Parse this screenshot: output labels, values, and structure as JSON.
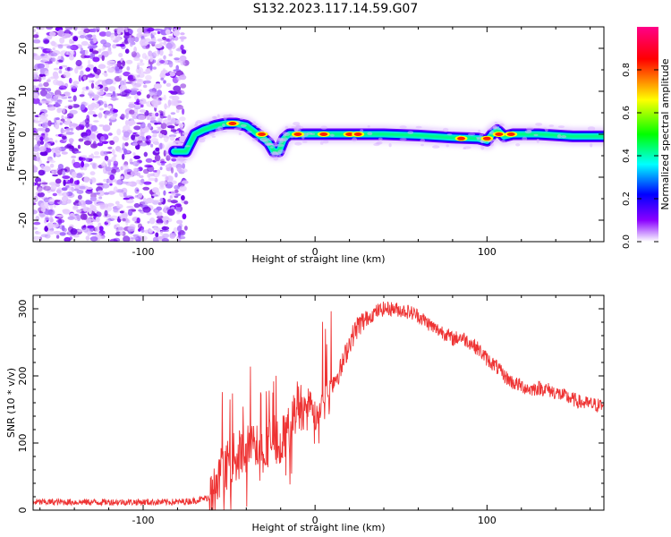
{
  "title": "S132.2023.117.14.59.G07",
  "chart_data": [
    {
      "type": "heatmap",
      "xlabel": "Height of straight line (km)",
      "ylabel": "Frequency (Hz)",
      "xlim": [
        -164,
        168
      ],
      "ylim": [
        -25,
        25
      ],
      "xticks": [
        -100,
        0,
        100
      ],
      "yticks": [
        -20,
        -10,
        0,
        10,
        20
      ],
      "colorbar": {
        "label": "Normalized spectral amplitude",
        "range": [
          0,
          1
        ],
        "ticks": [
          0.0,
          0.2,
          0.4,
          0.6,
          0.8
        ],
        "colors": [
          "#ffffff",
          "#8a00ff",
          "#0000ff",
          "#00ffff",
          "#00ff00",
          "#ffff00",
          "#ff0000",
          "#ff00aa"
        ]
      },
      "noise_region": {
        "x": [
          -164,
          -75
        ],
        "y": [
          -25,
          25
        ]
      },
      "ridge": {
        "x": [
          -82,
          -75,
          -70,
          -65,
          -58,
          -52,
          -46,
          -40,
          -35,
          -30,
          -27,
          -24,
          -21,
          -18,
          -15,
          -10,
          -5,
          0,
          20,
          40,
          60,
          80,
          95,
          100,
          103,
          106,
          110,
          115,
          130,
          150,
          168
        ],
        "y": [
          -4,
          -4,
          0,
          1,
          2,
          2.5,
          2.5,
          2,
          0.5,
          -1,
          -2,
          -4,
          -4,
          -1,
          0,
          0,
          0,
          0,
          0,
          0,
          -0.3,
          -0.8,
          -1,
          -1.5,
          0,
          1,
          -0.5,
          0,
          0,
          -0.5,
          -0.5
        ]
      },
      "hot_spots": [
        {
          "x": -48,
          "y": 2.5
        },
        {
          "x": -31,
          "y": 0
        },
        {
          "x": -10,
          "y": 0
        },
        {
          "x": 5,
          "y": 0
        },
        {
          "x": 20,
          "y": 0
        },
        {
          "x": 25,
          "y": 0
        },
        {
          "x": 85,
          "y": -1
        },
        {
          "x": 100,
          "y": -1
        },
        {
          "x": 107,
          "y": 0
        },
        {
          "x": 114,
          "y": 0
        }
      ]
    },
    {
      "type": "line",
      "xlabel": "Height of straight line (km)",
      "ylabel": "SNR (10 * v/v)",
      "xlim": [
        -164,
        168
      ],
      "ylim": [
        0,
        320
      ],
      "xticks": [
        -100,
        0,
        100
      ],
      "yticks": [
        0,
        100,
        200,
        300
      ],
      "color": "#ee3333",
      "series": [
        {
          "x": [
            -164,
            -140,
            -120,
            -100,
            -80,
            -70,
            -60,
            -55,
            -50,
            -45,
            -40,
            -35,
            -30,
            -25,
            -20,
            -15,
            -10,
            -5,
            0,
            5,
            10,
            15,
            20,
            25,
            30,
            35,
            40,
            45,
            50,
            55,
            60,
            65,
            70,
            75,
            80,
            85,
            90,
            95,
            100,
            105,
            110,
            115,
            120,
            125,
            130,
            135,
            140,
            145,
            150,
            155,
            160,
            168
          ],
          "y": [
            12,
            12,
            12,
            12,
            12,
            14,
            20,
            45,
            75,
            80,
            90,
            95,
            90,
            110,
            100,
            120,
            160,
            150,
            130,
            170,
            190,
            210,
            250,
            275,
            285,
            295,
            300,
            300,
            298,
            295,
            290,
            280,
            270,
            265,
            255,
            258,
            250,
            240,
            225,
            215,
            200,
            190,
            185,
            180,
            182,
            180,
            175,
            170,
            165,
            160,
            158,
            155
          ]
        }
      ]
    }
  ]
}
